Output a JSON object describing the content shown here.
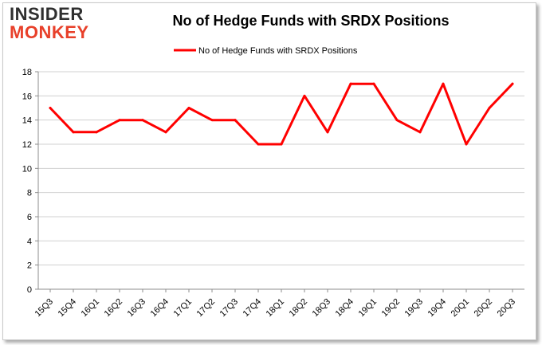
{
  "logo": {
    "line1": "INSIDER",
    "line2": "MONKEY"
  },
  "chart_data": {
    "type": "line",
    "title": "No of Hedge Funds with SRDX Positions",
    "xlabel": "",
    "ylabel": "",
    "categories": [
      "15Q3",
      "15Q4",
      "16Q1",
      "16Q2",
      "16Q3",
      "16Q4",
      "17Q1",
      "17Q2",
      "17Q3",
      "17Q4",
      "18Q1",
      "18Q2",
      "18Q3",
      "18Q4",
      "19Q1",
      "19Q2",
      "19Q3",
      "19Q4",
      "20Q1",
      "20Q2",
      "20Q3"
    ],
    "series": [
      {
        "name": "No of Hedge Funds with SRDX Positions",
        "color": "#ff0000",
        "values": [
          15,
          13,
          13,
          14,
          14,
          13,
          15,
          14,
          14,
          12,
          12,
          16,
          13,
          17,
          17,
          14,
          13,
          17,
          12,
          15,
          17
        ]
      }
    ],
    "ylim": [
      0,
      18
    ],
    "yticks": [
      0,
      2,
      4,
      6,
      8,
      10,
      12,
      14,
      16,
      18
    ],
    "grid": true,
    "legend": "top-center"
  }
}
